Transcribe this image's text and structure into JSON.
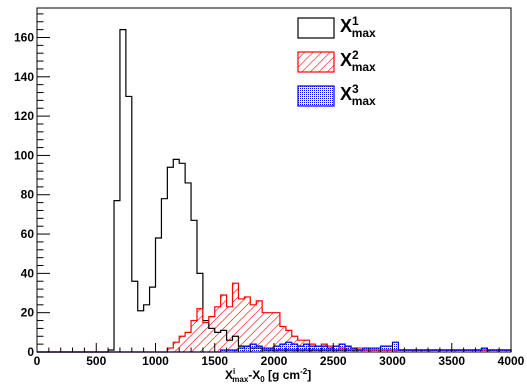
{
  "chart_data": {
    "type": "histogram",
    "xlim": [
      0,
      4000
    ],
    "ylim": [
      0,
      175
    ],
    "bin_width": 50,
    "x_ticks": [
      0,
      500,
      1000,
      1500,
      2000,
      2500,
      3000,
      3500,
      4000
    ],
    "y_ticks": [
      0,
      20,
      40,
      60,
      80,
      100,
      120,
      140,
      160
    ],
    "xlabel": {
      "base": "X",
      "sup": "i",
      "sub": "max",
      "mid": "-X",
      "sub2": "0",
      "tail": " [g cm",
      "sup2": "-2",
      "close": "]"
    },
    "legend_position": "top-right",
    "series": [
      {
        "label": {
          "base": "X",
          "sub": "max",
          "sup": "1"
        },
        "style": "outline",
        "color": "#000000",
        "bin_start": 600,
        "values": [
          1,
          77,
          164,
          130,
          36,
          21,
          24,
          33,
          58,
          78,
          94,
          98,
          96,
          86,
          67,
          40,
          16,
          12,
          10,
          11,
          6,
          8,
          3,
          3,
          2,
          2,
          1,
          1,
          1,
          1,
          1,
          1,
          1,
          1,
          1,
          1,
          1,
          1,
          1,
          1,
          1,
          1,
          1,
          1,
          1,
          1,
          1,
          1,
          1,
          1,
          1,
          1,
          1,
          1,
          1,
          1,
          1,
          1,
          1,
          1,
          1,
          1,
          1,
          1,
          1,
          1,
          1,
          1
        ]
      },
      {
        "label": {
          "base": "X",
          "sub": "max",
          "sup": "2"
        },
        "style": "hatched",
        "color": "#ff0000",
        "bin_start": 1100,
        "values": [
          2,
          5,
          8,
          10,
          16,
          22,
          15,
          18,
          23,
          29,
          23,
          35,
          27,
          28,
          24,
          26,
          20,
          20,
          20,
          13,
          11,
          8,
          6,
          6,
          4,
          3,
          4,
          3,
          3,
          2,
          3,
          2,
          2,
          1,
          1,
          1,
          1,
          1,
          1,
          1,
          1,
          1,
          1,
          1,
          1,
          1,
          1,
          1,
          1,
          1,
          1,
          1,
          1,
          1,
          1,
          1,
          1,
          1
        ]
      },
      {
        "label": {
          "base": "X",
          "sub": "max",
          "sup": "3"
        },
        "style": "dotted",
        "color": "#0000ff",
        "bin_start": 1400,
        "values": [
          0,
          0,
          0,
          1,
          1,
          1,
          2,
          3,
          4,
          3,
          2,
          2,
          3,
          4,
          5,
          4,
          3,
          4,
          3,
          3,
          3,
          2,
          3,
          4,
          3,
          2,
          1,
          2,
          2,
          2,
          3,
          3,
          5,
          1,
          1,
          1,
          1,
          1,
          1,
          1,
          1,
          1,
          1,
          1,
          1,
          1,
          1,
          2,
          1,
          1,
          1,
          1
        ]
      }
    ]
  }
}
